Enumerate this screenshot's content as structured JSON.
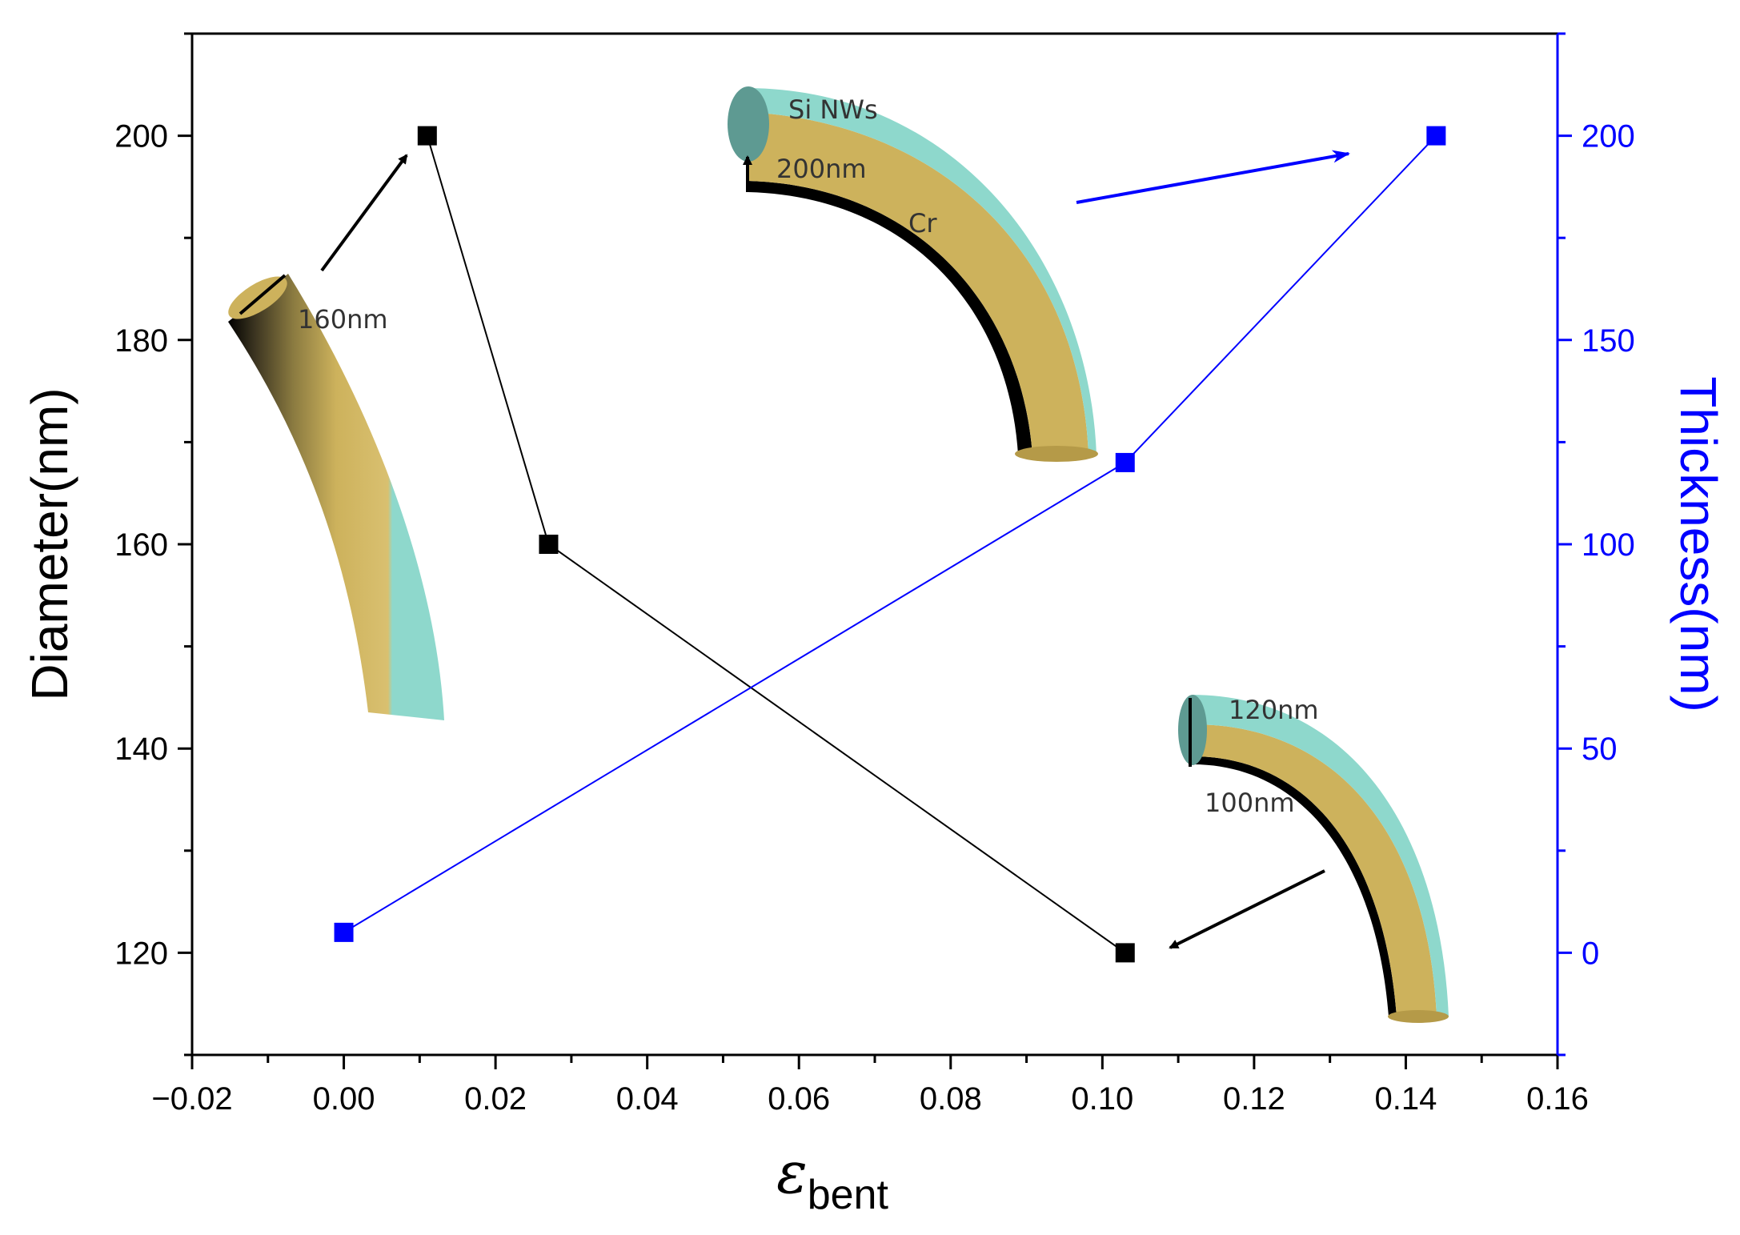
{
  "chart_data": {
    "type": "line",
    "title": "",
    "xlabel": "ε",
    "xlabel_sub": "bent",
    "ylabel": "Diameter(nm)",
    "y2label": "Thickness(nm)",
    "xlim": [
      -0.02,
      0.16
    ],
    "ylim": [
      110,
      210
    ],
    "y2lim": [
      -25,
      225
    ],
    "x_ticks": [
      -0.02,
      0.0,
      0.02,
      0.04,
      0.06,
      0.08,
      0.1,
      0.12,
      0.14,
      0.16
    ],
    "x_tick_labels": [
      "−0.02",
      "0.00",
      "0.02",
      "0.04",
      "0.06",
      "0.08",
      "0.10",
      "0.12",
      "0.14",
      "0.16"
    ],
    "y_ticks": [
      120,
      140,
      160,
      180,
      200
    ],
    "y_tick_labels": [
      "120",
      "140",
      "160",
      "180",
      "200"
    ],
    "y2_ticks": [
      0,
      50,
      100,
      150,
      200
    ],
    "y2_tick_labels": [
      "0",
      "50",
      "100",
      "150",
      "200"
    ],
    "grid": false,
    "series": [
      {
        "axis": "left",
        "color": "#000000",
        "x": [
          0.011,
          0.027,
          0.103
        ],
        "y": [
          200,
          160,
          120
        ]
      },
      {
        "axis": "right",
        "color": "#0000ff",
        "x": [
          0.0,
          0.103,
          0.144
        ],
        "y": [
          5,
          120,
          200
        ]
      }
    ],
    "annotations": [
      {
        "id": "ann_160",
        "text": "160nm"
      },
      {
        "id": "ann_sinw",
        "text": "Si NWs"
      },
      {
        "id": "ann_200",
        "text": "200nm"
      },
      {
        "id": "ann_cr",
        "text": "Cr"
      },
      {
        "id": "ann_120",
        "text": "120nm"
      },
      {
        "id": "ann_100",
        "text": "100nm"
      }
    ]
  },
  "colors": {
    "shell": "#8ed8cc",
    "shell_end": "#5e9a92",
    "core": "#cdb25c",
    "core_shadow": "#000000",
    "right_axis": "#0000ff"
  }
}
